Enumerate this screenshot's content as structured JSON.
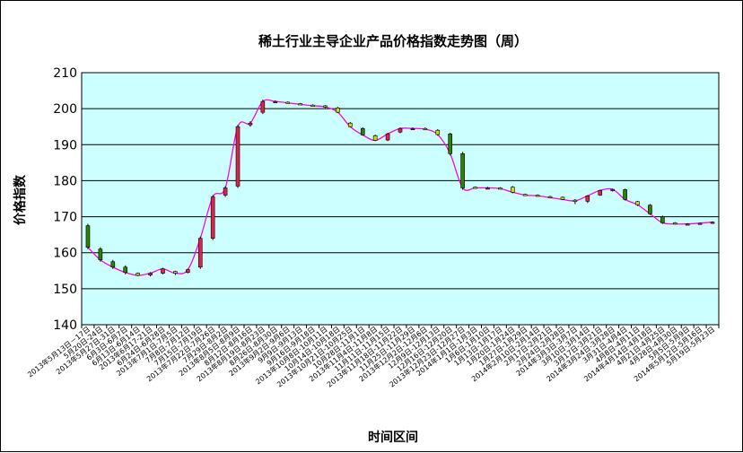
{
  "chart_data": {
    "type": "stock",
    "title": "稀土行业主导企业产品价格指数走势图（周）",
    "xlabel": "时间区间",
    "ylabel": "价格指数",
    "ylim": [
      140,
      210
    ],
    "yticks": [
      140,
      150,
      160,
      170,
      180,
      190,
      200,
      210
    ],
    "grid": true,
    "legend": "none",
    "colors": {
      "plot_bg": "#ccffff",
      "line": "#ff00ff",
      "up_box": "#e0224a",
      "down_box": "#2f7f00",
      "down_box_light": "#c8e000"
    },
    "periods": [
      {
        "label": "2013年5月13日－17日",
        "open": 167.5,
        "close": 161.5,
        "high": 168,
        "low": 161
      },
      {
        "label": "5月20日-24日",
        "open": 161,
        "close": 158,
        "high": 161.5,
        "low": 157.5
      },
      {
        "label": "2013年5月27日-31日",
        "open": 157.5,
        "close": 156,
        "high": 158,
        "low": 155.5
      },
      {
        "label": "6月3日-6月7日",
        "open": 156,
        "close": 154.5,
        "high": 156.5,
        "low": 154
      },
      {
        "label": "6月13日-6月14日",
        "open": 154.3,
        "close": 153.7,
        "high": 154.5,
        "low": 153.5
      },
      {
        "label": "2013年6月17-21日",
        "open": 153.8,
        "close": 154.3,
        "high": 154.6,
        "low": 153.4
      },
      {
        "label": "6月24日-6月28日",
        "open": 154.3,
        "close": 155.5,
        "high": 155.8,
        "low": 154
      },
      {
        "label": "2013年7月1日-7月5日",
        "open": 154.8,
        "close": 154.3,
        "high": 155,
        "low": 153.8
      },
      {
        "label": "7月8日-7月12日",
        "open": 154.5,
        "close": 155.3,
        "high": 155.6,
        "low": 154.3
      },
      {
        "label": "7月15日-7月19日",
        "open": 156,
        "close": 164,
        "high": 164.5,
        "low": 155.5
      },
      {
        "label": "2013年7月22日-7月26日",
        "open": 164,
        "close": 175.5,
        "high": 176,
        "low": 163.5
      },
      {
        "label": "7月29日-8月2日",
        "open": 176,
        "close": 178,
        "high": 178.5,
        "low": 175.5
      },
      {
        "label": "2013年8月5日-8月9日",
        "open": 178.5,
        "close": 195,
        "high": 195.5,
        "low": 178
      },
      {
        "label": "8月12日-8月16日",
        "open": 195.5,
        "close": 196,
        "high": 196.5,
        "low": 195
      },
      {
        "label": "2013年8月19日-8月23日",
        "open": 199,
        "close": 202,
        "high": 202.5,
        "low": 198.5
      },
      {
        "label": "8月26日-8月30日",
        "open": 202,
        "close": 202,
        "high": 202.3,
        "low": 201.7
      },
      {
        "label": "2013年9月2日-9月6日",
        "open": 201.8,
        "close": 201.6,
        "high": 202,
        "low": 201.4
      },
      {
        "label": "9月9日-9月13日",
        "open": 201.4,
        "close": 201.2,
        "high": 201.6,
        "low": 201
      },
      {
        "label": "9月16日-9月18日",
        "open": 201,
        "close": 200.8,
        "high": 201.2,
        "low": 200.6
      },
      {
        "label": "2013年10月8日-10月11日",
        "open": 200.8,
        "close": 200.5,
        "high": 201,
        "low": 200.2
      },
      {
        "label": "10月14日-10月18日",
        "open": 200.2,
        "close": 199,
        "high": 200.5,
        "low": 198.8
      },
      {
        "label": "2013年10月21日-10月25日",
        "open": 196,
        "close": 195,
        "high": 196.3,
        "low": 194.8
      },
      {
        "label": "10月28日-11月1日",
        "open": 194.5,
        "close": 192.7,
        "high": 194.8,
        "low": 192.5
      },
      {
        "label": "2013年11月4日-11月8日",
        "open": 192.5,
        "close": 191.2,
        "high": 192.8,
        "low": 191
      },
      {
        "label": "11月11日-11月15日",
        "open": 191.3,
        "close": 193,
        "high": 193.3,
        "low": 191
      },
      {
        "label": "2013年11月18日-11月22日",
        "open": 193.5,
        "close": 194.5,
        "high": 194.8,
        "low": 193.2
      },
      {
        "label": "11月25日-11月29日",
        "open": 194.5,
        "close": 194.5,
        "high": 194.8,
        "low": 194.2
      },
      {
        "label": "2013年12月2日-12月6日",
        "open": 194.5,
        "close": 194.3,
        "high": 194.8,
        "low": 194
      },
      {
        "label": "12月9日-12月13日",
        "open": 194,
        "close": 192.8,
        "high": 194.3,
        "low": 192.5
      },
      {
        "label": "12月16日-12月20日",
        "open": 193,
        "close": 187.5,
        "high": 193.3,
        "low": 187
      },
      {
        "label": "2013年12月23日-12月27日",
        "open": 187.5,
        "close": 178,
        "high": 188,
        "low": 177.5
      },
      {
        "label": "2014年1月1日-1月3日",
        "open": 178.2,
        "close": 178,
        "high": 178.4,
        "low": 177.8
      },
      {
        "label": "1月6日-1月10日",
        "open": 178,
        "close": 178,
        "high": 178.3,
        "low": 177.7
      },
      {
        "label": "1月13日-1月17日",
        "open": 178,
        "close": 177.8,
        "high": 178.2,
        "low": 177.6
      },
      {
        "label": "1月20日-1月24日",
        "open": 178.2,
        "close": 176.8,
        "high": 178.5,
        "low": 176.5
      },
      {
        "label": "1月27日-1月29日",
        "open": 176.2,
        "close": 176,
        "high": 176.4,
        "low": 175.8
      },
      {
        "label": "2014年2月10日-2月14日",
        "open": 176,
        "close": 175.8,
        "high": 176.2,
        "low": 175.6
      },
      {
        "label": "2月17日-2月21日",
        "open": 175.6,
        "close": 175.3,
        "high": 175.8,
        "low": 175.1
      },
      {
        "label": "2月24日-2月28日",
        "open": 175.4,
        "close": 174.8,
        "high": 175.6,
        "low": 174.6
      },
      {
        "label": "2014年3月3日-3月7日",
        "open": 174.6,
        "close": 174.4,
        "high": 174.9,
        "low": 173.5
      },
      {
        "label": "3月10日-3月14日",
        "open": 174.3,
        "close": 175.8,
        "high": 176,
        "low": 173.8
      },
      {
        "label": "3月17日-3月21日",
        "open": 176,
        "close": 177.3,
        "high": 177.5,
        "low": 175.8
      },
      {
        "label": "2014年3月24日-3月28日",
        "open": 177.3,
        "close": 177.6,
        "high": 177.8,
        "low": 177
      },
      {
        "label": "3月31日-4月4日",
        "open": 177.5,
        "close": 174.8,
        "high": 177.8,
        "low": 174.5
      },
      {
        "label": "4月8日-4月11日",
        "open": 174.2,
        "close": 173.3,
        "high": 174.4,
        "low": 173
      },
      {
        "label": "2014年4月14日-4月18日",
        "open": 173.2,
        "close": 170.8,
        "high": 173.5,
        "low": 170.5
      },
      {
        "label": "4月21日-4月25日",
        "open": 170,
        "close": 168.3,
        "high": 170.3,
        "low": 168
      },
      {
        "label": "4月28日-4月30日",
        "open": 168.3,
        "close": 168,
        "high": 168.5,
        "low": 167.8
      },
      {
        "label": "5月5日-5月9日",
        "open": 168,
        "close": 168,
        "high": 168.2,
        "low": 167.8
      },
      {
        "label": "2014年5月12日-5月16日",
        "open": 168,
        "close": 168.2,
        "high": 168.4,
        "low": 167.9
      },
      {
        "label": "5月19日-5月23日",
        "open": 168.2,
        "close": 168.5,
        "high": 168.7,
        "low": 168
      }
    ]
  }
}
